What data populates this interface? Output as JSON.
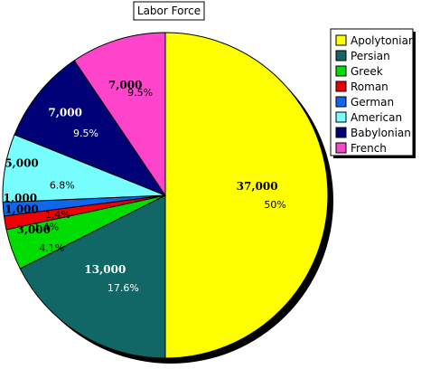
{
  "chart_data": {
    "type": "pie",
    "title": "Labor Force",
    "legend_position": "top-right",
    "slices": [
      {
        "label": "Apolytonian",
        "value": 37000,
        "value_label": "37,000",
        "percent_label": "50%",
        "color": "#ffff00"
      },
      {
        "label": "Persian",
        "value": 13000,
        "value_label": "13,000",
        "percent_label": "17.6%",
        "color": "#116666"
      },
      {
        "label": "Greek",
        "value": 3000,
        "value_label": "3,000",
        "percent_label": "4.1%",
        "color": "#00dd00"
      },
      {
        "label": "Roman",
        "value": 1000,
        "value_label": "1,000",
        "percent_label": "1.4%",
        "color": "#ee0000"
      },
      {
        "label": "German",
        "value": 1000,
        "value_label": "1,000",
        "percent_label": "1.4%",
        "color": "#1166ee"
      },
      {
        "label": "American",
        "value": 5000,
        "value_label": "5,000",
        "percent_label": "6.8%",
        "color": "#77ffff"
      },
      {
        "label": "Babylonian",
        "value": 7000,
        "value_label": "7,000",
        "percent_label": "9.5%",
        "color": "#000077"
      },
      {
        "label": "French",
        "value": 7000,
        "value_label": "7,000",
        "percent_label": "9.5%",
        "color": "#ff44cc"
      }
    ]
  }
}
